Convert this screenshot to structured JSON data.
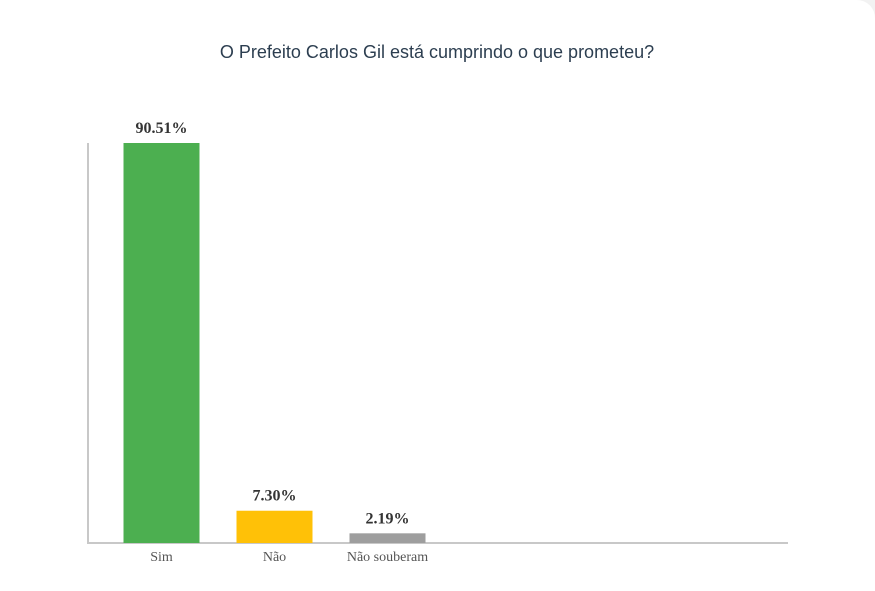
{
  "chart_data": {
    "type": "bar",
    "title": "O Prefeito Carlos Gil está cumprindo o que prometeu?",
    "categories": [
      "Sim",
      "Não",
      "Não souberam"
    ],
    "values": [
      90.51,
      7.3,
      2.19
    ],
    "value_labels": [
      "90.51%",
      "7.30%",
      "2.19%"
    ],
    "colors": [
      "#4caf50",
      "#ffc107",
      "#9e9e9e"
    ],
    "ylim": [
      0,
      90.51
    ]
  }
}
